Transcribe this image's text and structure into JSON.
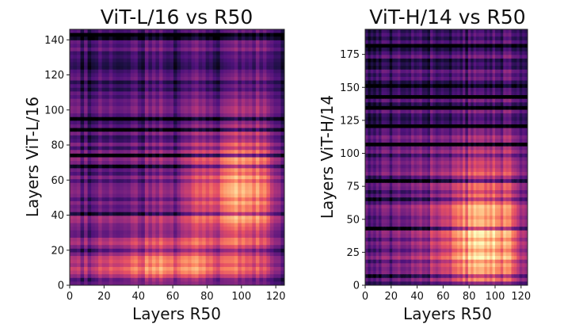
{
  "chart_data": [
    {
      "type": "heatmap",
      "title": "ViT-L/16 vs R50",
      "xlabel": "Layers R50",
      "ylabel": "Layers ViT-L/16",
      "xlim": [
        0,
        125
      ],
      "ylim": [
        0,
        146
      ],
      "xticks": [
        0,
        20,
        40,
        60,
        80,
        100,
        120
      ],
      "yticks": [
        0,
        20,
        40,
        60,
        80,
        100,
        120,
        140
      ],
      "colormap": "magma",
      "value_range": [
        0,
        1
      ],
      "notes": "Brighter (high similarity) regions for low ViT layers vs most R50 layers and a bright block around ViT layers 40-80 / R50 layers 70-110; darker rows for many upper ViT layers."
    },
    {
      "type": "heatmap",
      "title": "ViT-H/14 vs R50",
      "xlabel": "Layers R50",
      "ylabel": "Layers ViT-H/14",
      "xlim": [
        0,
        125
      ],
      "ylim": [
        0,
        194
      ],
      "xticks": [
        0,
        20,
        40,
        60,
        80,
        100,
        120
      ],
      "yticks": [
        0,
        25,
        50,
        75,
        100,
        125,
        150,
        175
      ],
      "colormap": "magma",
      "value_range": [
        0,
        1
      ],
      "notes": "Bright region for lower ViT layers vs mid-to-late R50 layers, fading toward top-left; darker rows for upper ViT layers."
    }
  ]
}
